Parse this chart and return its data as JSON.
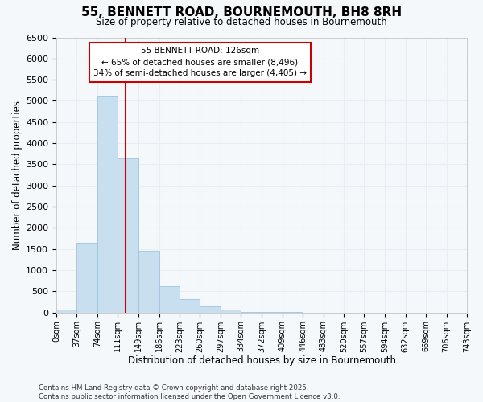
{
  "title": "55, BENNETT ROAD, BOURNEMOUTH, BH8 8RH",
  "subtitle": "Size of property relative to detached houses in Bournemouth",
  "xlabel": "Distribution of detached houses by size in Bournemouth",
  "ylabel": "Number of detached properties",
  "bar_color": "#c8dff0",
  "bar_edge_color": "#9ec4df",
  "background_color": "#f5f8fb",
  "grid_color": "#e8eef4",
  "annotation_text": "55 BENNETT ROAD: 126sqm\n← 65% of detached houses are smaller (8,496)\n34% of semi-detached houses are larger (4,405) →",
  "vline_x": 126,
  "vline_color": "#cc0000",
  "bin_edges": [
    0,
    37,
    74,
    111,
    149,
    186,
    223,
    260,
    297,
    334,
    372,
    409,
    446,
    483,
    520,
    557,
    594,
    632,
    669,
    706,
    743
  ],
  "counts": [
    70,
    1650,
    5100,
    3650,
    1450,
    620,
    320,
    150,
    60,
    20,
    5,
    5,
    2,
    1,
    0,
    0,
    0,
    0,
    0,
    0
  ],
  "ylim": [
    0,
    6500
  ],
  "yticks": [
    0,
    500,
    1000,
    1500,
    2000,
    2500,
    3000,
    3500,
    4000,
    4500,
    5000,
    5500,
    6000,
    6500
  ],
  "footer_text": "Contains HM Land Registry data © Crown copyright and database right 2025.\nContains public sector information licensed under the Open Government Licence v3.0.",
  "tick_labels": [
    "0sqm",
    "37sqm",
    "74sqm",
    "111sqm",
    "149sqm",
    "186sqm",
    "223sqm",
    "260sqm",
    "297sqm",
    "334sqm",
    "372sqm",
    "409sqm",
    "446sqm",
    "483sqm",
    "520sqm",
    "557sqm",
    "594sqm",
    "632sqm",
    "669sqm",
    "706sqm",
    "743sqm"
  ]
}
